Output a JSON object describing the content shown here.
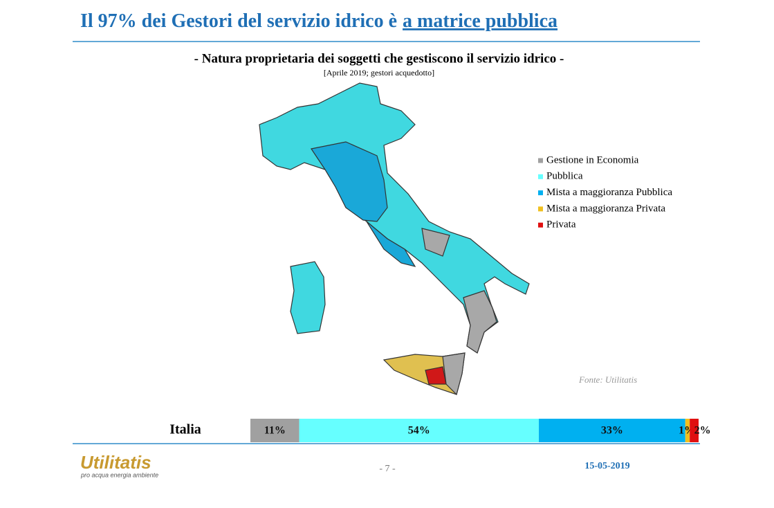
{
  "header": {
    "title": "Il 97% dei Gestori del servizio idrico è",
    "title_highlight": "a matrice pubblica"
  },
  "chart_data": {
    "type": "stacked-bar",
    "title": "- Natura proprietaria dei soggetti che gestiscono il servizio idrico -",
    "subtitle": "[Aprile 2019; gestori acquedotto]",
    "source": "Fonte: Utilitatis",
    "categories": [
      "Italia"
    ],
    "series": [
      {
        "name": "Gestione in Economia",
        "color": "#a0a0a0",
        "values": [
          11
        ],
        "value_labels": [
          "11%"
        ]
      },
      {
        "name": "Pubblica",
        "color": "#66ffff",
        "values": [
          54
        ],
        "value_labels": [
          "54%"
        ]
      },
      {
        "name": "Mista a maggioranza Pubblica",
        "color": "#00b0f0",
        "values": [
          33
        ],
        "value_labels": [
          "33%"
        ]
      },
      {
        "name": "Mista a maggioranza Privata",
        "color": "#f0c020",
        "values": [
          1
        ],
        "value_labels": [
          "1%"
        ]
      },
      {
        "name": "Privata",
        "color": "#e01010",
        "values": [
          2
        ],
        "value_labels": [
          "2%"
        ]
      }
    ]
  },
  "footer": {
    "logo": "Utilitatis",
    "tagline": "pro acqua energia ambiente",
    "page": "- 7 -",
    "date": "15-05-2019"
  }
}
